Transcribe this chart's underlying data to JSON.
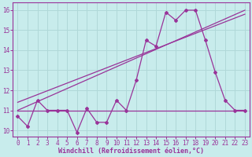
{
  "xlabel": "Windchill (Refroidissement éolien,°C)",
  "bg_color": "#c8ecec",
  "grid_color": "#b0d8d8",
  "line_color": "#993399",
  "xlim": [
    -0.5,
    23.5
  ],
  "ylim": [
    9.7,
    16.4
  ],
  "xticks": [
    0,
    1,
    2,
    3,
    4,
    5,
    6,
    7,
    8,
    9,
    10,
    11,
    12,
    13,
    14,
    15,
    16,
    17,
    18,
    19,
    20,
    21,
    22,
    23
  ],
  "yticks": [
    10,
    11,
    12,
    13,
    14,
    15,
    16
  ],
  "series1_x": [
    0,
    1,
    2,
    3,
    4,
    5,
    6,
    7,
    8,
    9,
    10,
    11,
    12,
    13,
    14,
    15,
    16,
    17,
    18,
    19,
    20,
    21,
    22,
    23
  ],
  "series1_y": [
    10.7,
    10.2,
    11.5,
    11.0,
    11.0,
    11.0,
    9.9,
    11.1,
    10.4,
    10.4,
    11.5,
    11.0,
    12.5,
    14.5,
    14.2,
    15.9,
    15.5,
    16.0,
    16.0,
    14.5,
    12.9,
    11.5,
    11.0,
    11.0
  ],
  "series2_x": [
    0,
    23
  ],
  "series2_y": [
    11.0,
    16.0
  ],
  "series3_x": [
    0,
    23
  ],
  "series3_y": [
    11.4,
    15.8
  ],
  "series4_x": [
    0,
    23
  ],
  "series4_y": [
    11.0,
    11.0
  ]
}
